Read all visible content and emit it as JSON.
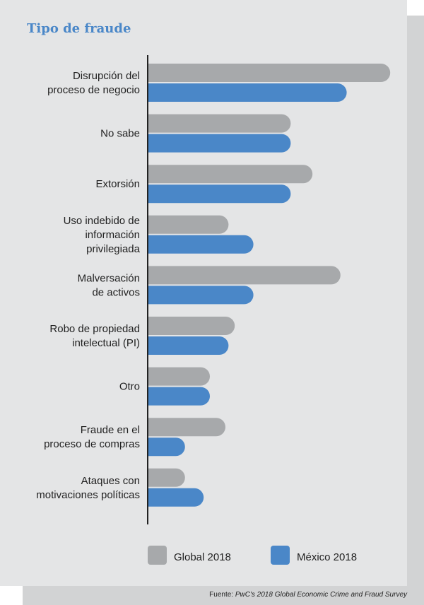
{
  "title": "Tipo de fraude",
  "source": {
    "prefix": "Fuente: ",
    "title": "PwC's 2018 Global Economic Crime and Fraud Survey"
  },
  "colors": {
    "global": "#a7a9ab",
    "mexico": "#4a87c8",
    "title": "#4a87c8",
    "axis": "#222222"
  },
  "chart_data": {
    "type": "bar",
    "orientation": "horizontal",
    "title": "Tipo de fraude",
    "categories": [
      [
        "Disrupción del",
        "proceso de negocio"
      ],
      [
        "No sabe"
      ],
      [
        "Extorsión"
      ],
      [
        "Uso indebido de",
        "información",
        "privilegiada"
      ],
      [
        "Malversación",
        "de activos"
      ],
      [
        "Robo de propiedad",
        "intelectual (PI)"
      ],
      [
        "Otro"
      ],
      [
        "Fraude en el",
        "proceso de compras"
      ],
      [
        "Ataques con",
        "motivaciones políticas"
      ]
    ],
    "series": [
      {
        "name": "Global 2018",
        "color": "#a7a9ab",
        "values": [
          39,
          23,
          26.5,
          13,
          31,
          14,
          10,
          12.5,
          6
        ]
      },
      {
        "name": "México 2018",
        "color": "#4a87c8",
        "values": [
          32,
          23,
          23,
          17,
          17,
          13,
          10,
          6,
          9
        ]
      }
    ],
    "xlim": [
      0,
      40
    ],
    "grid": false,
    "legend_position": "bottom"
  }
}
